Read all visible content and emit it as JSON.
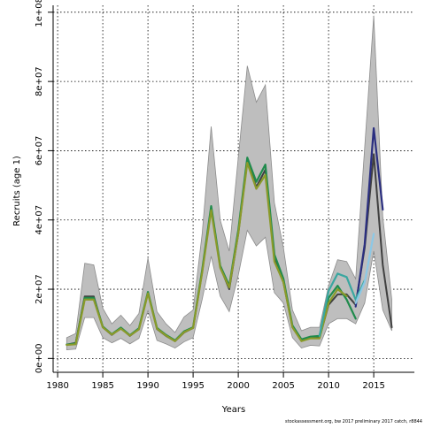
{
  "chart_data": {
    "type": "line",
    "xlabel": "Years",
    "ylabel": "Recruits (age 1)",
    "footnote": "stockassessment.org, bw 2017 preliminary 2017 catch, r8844",
    "xlim": [
      1979.5,
      2019.5
    ],
    "ylim": [
      -4000000,
      102000000
    ],
    "x_ticks": [
      1980,
      1985,
      1990,
      1995,
      2000,
      2005,
      2010,
      2015
    ],
    "x_tick_labels": [
      "1980",
      "1985",
      "1990",
      "1995",
      "2000",
      "2005",
      "2010",
      "2015"
    ],
    "y_ticks": [
      0,
      20000000,
      40000000,
      60000000,
      80000000,
      100000000
    ],
    "y_tick_labels": [
      "0e+00",
      "2e+07",
      "4e+07",
      "6e+07",
      "8e+07",
      "1e+08"
    ],
    "grid": true,
    "legend": "none",
    "colors": {
      "band": "#bebebe",
      "base_line": "#404040",
      "navy": "#2b2f80",
      "green": "#1f8b4c",
      "olive": "#8a9a2a",
      "teal": "#3aa7a0",
      "light_blue": "#8cc8e6"
    },
    "band": {
      "x": [
        1981,
        1982,
        1983,
        1984,
        1985,
        1986,
        1987,
        1988,
        1989,
        1990,
        1991,
        1992,
        1993,
        1994,
        1995,
        1996,
        1997,
        1998,
        1999,
        2000,
        2001,
        2002,
        2003,
        2004,
        2005,
        2006,
        2007,
        2008,
        2009,
        2010,
        2011,
        2012,
        2013,
        2014,
        2015,
        2016,
        2017
      ],
      "lower": [
        2500000,
        2700000,
        11800000,
        11800000,
        6000000,
        4500000,
        5800000,
        4200000,
        5800000,
        13800000,
        5200000,
        4200000,
        3000000,
        4800000,
        6000000,
        17000000,
        29500000,
        18000000,
        13500000,
        24000000,
        37000000,
        32500000,
        35000000,
        19000000,
        16000000,
        6000000,
        3000000,
        3800000,
        3600000,
        10000000,
        11500000,
        11500000,
        10000000,
        16000000,
        31000000,
        14000000,
        8000000
      ],
      "upper": [
        6000000,
        7200000,
        27500000,
        27000000,
        14500000,
        10000000,
        12500000,
        9500000,
        13000000,
        29000000,
        13500000,
        10000000,
        7500000,
        12000000,
        14000000,
        36000000,
        67000000,
        40000000,
        31000000,
        58000000,
        84500000,
        74000000,
        79000000,
        45000000,
        32000000,
        14000000,
        8000000,
        9000000,
        9000000,
        21000000,
        28500000,
        28000000,
        23000000,
        61000000,
        99000000,
        41000000,
        17000000
      ]
    },
    "series": [
      {
        "color": "#404040",
        "x": [
          1981,
          1982,
          1983,
          1984,
          1985,
          1986,
          1987,
          1988,
          1989,
          1990,
          1991,
          1992,
          1993,
          1994,
          1995,
          1996,
          1997,
          1998,
          1999,
          2000,
          2001,
          2002,
          2003,
          2004,
          2005,
          2006,
          2007,
          2008,
          2009,
          2010,
          2011,
          2012,
          2013,
          2014,
          2015,
          2016,
          2017
        ],
        "values": [
          4000000,
          4500000,
          17900000,
          17900000,
          9000000,
          6800000,
          8800000,
          6500000,
          8500000,
          19000000,
          8500000,
          6500000,
          5000000,
          7500000,
          8800000,
          25000000,
          43500000,
          26500000,
          20000000,
          36000000,
          57000000,
          49500000,
          54500000,
          29000000,
          22000000,
          9000000,
          5200000,
          6000000,
          6000000,
          15500000,
          18500000,
          18500000,
          15500000,
          32000000,
          59000000,
          27000000,
          9000000
        ]
      },
      {
        "color": "#2b2f80",
        "x": [
          2013,
          2014,
          2015,
          2016
        ],
        "values": [
          15000000,
          33000000,
          66500000,
          43000000
        ]
      },
      {
        "color": "#1f8b4c",
        "x": [
          1981,
          1982,
          1983,
          1984,
          1985,
          1986,
          1987,
          1988,
          1989,
          1990,
          1991,
          1992,
          1993,
          1994,
          1995,
          1996,
          1997,
          1998,
          1999,
          2000,
          2001,
          2002,
          2003,
          2004,
          2005,
          2006,
          2007,
          2008,
          2009,
          2010,
          2011,
          2012,
          2013
        ],
        "values": [
          4000000,
          4300000,
          17500000,
          17500000,
          9200000,
          7000000,
          8900000,
          6700000,
          8700000,
          19200000,
          8800000,
          6800000,
          5200000,
          7800000,
          9000000,
          25500000,
          44000000,
          26800000,
          21000000,
          37000000,
          58000000,
          51000000,
          56000000,
          30000000,
          23000000,
          9500000,
          5500000,
          6300000,
          6500000,
          17500000,
          21000000,
          17000000,
          11500000
        ]
      },
      {
        "color": "#8a9a2a",
        "x": [
          1981,
          1982,
          1983,
          1984,
          1985,
          1986,
          1987,
          1988,
          1989,
          1990,
          1991,
          1992,
          1993,
          1994,
          1995,
          1996,
          1997,
          1998,
          1999,
          2000,
          2001,
          2002,
          2003,
          2004,
          2005,
          2006,
          2007,
          2008,
          2009,
          2010,
          2011,
          2012
        ],
        "values": [
          3900000,
          4100000,
          17000000,
          17000000,
          9000000,
          6900000,
          8600000,
          6600000,
          8400000,
          18800000,
          8600000,
          6600000,
          5000000,
          7600000,
          8800000,
          24800000,
          42800000,
          26200000,
          20500000,
          36000000,
          56500000,
          49000000,
          53000000,
          28000000,
          22000000,
          9000000,
          5000000,
          5800000,
          5800000,
          16000000,
          20000000,
          18000000
        ]
      },
      {
        "color": "#3aa7a0",
        "x": [
          2009,
          2010,
          2011,
          2012,
          2013,
          2014
        ],
        "values": [
          6500000,
          19500000,
          24500000,
          23500000,
          17000000,
          22500000
        ]
      },
      {
        "color": "#8cc8e6",
        "x": [
          2013,
          2014,
          2015
        ],
        "values": [
          16000000,
          22000000,
          36000000
        ]
      }
    ]
  }
}
